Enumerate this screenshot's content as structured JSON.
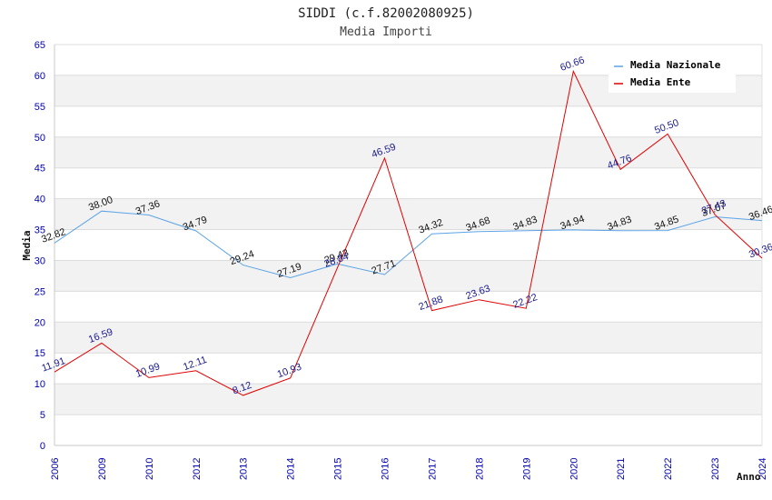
{
  "chart_data": {
    "type": "line",
    "title": "SIDDI (c.f.82002080925)",
    "subtitle": "Media Importi",
    "xlabel": "Anno",
    "ylabel": "Media",
    "ylim": [
      0,
      65
    ],
    "yticks": [
      "0",
      "5",
      "10",
      "15",
      "20",
      "25",
      "30",
      "35",
      "40",
      "45",
      "50",
      "55",
      "60",
      "65"
    ],
    "categories": [
      "2006",
      "2009",
      "2010",
      "2012",
      "2013",
      "2014",
      "2015",
      "2016",
      "2017",
      "2018",
      "2019",
      "2020",
      "2021",
      "2022",
      "2023",
      "2024"
    ],
    "legend_position": "top-right",
    "series": [
      {
        "name": "Media Nazionale",
        "color": "#5ba3e6",
        "values": [
          32.82,
          38.0,
          37.36,
          34.79,
          29.24,
          27.19,
          29.43,
          27.71,
          34.32,
          34.68,
          34.83,
          34.94,
          34.83,
          34.85,
          37.07,
          36.46
        ],
        "labels": [
          "32.82",
          "38.00",
          "37.36",
          "34.79",
          "29.24",
          "27.19",
          "29.43",
          "27.71",
          "34.32",
          "34.68",
          "34.83",
          "34.94",
          "34.83",
          "34.85",
          "37.07",
          "36.46"
        ]
      },
      {
        "name": "Media Ente",
        "color": "#e00000",
        "values": [
          11.91,
          16.59,
          10.99,
          12.11,
          8.12,
          10.93,
          28.84,
          46.59,
          21.88,
          23.63,
          22.22,
          60.66,
          44.76,
          50.5,
          37.43,
          30.36
        ],
        "labels": [
          "11.91",
          "16.59",
          "10.99",
          "12.11",
          "8.12",
          "10.93",
          "28.84",
          "46.59",
          "21.88",
          "23.63",
          "22.22",
          "60.66",
          "44.76",
          "50.50",
          "37.43",
          "30.36"
        ]
      }
    ]
  }
}
